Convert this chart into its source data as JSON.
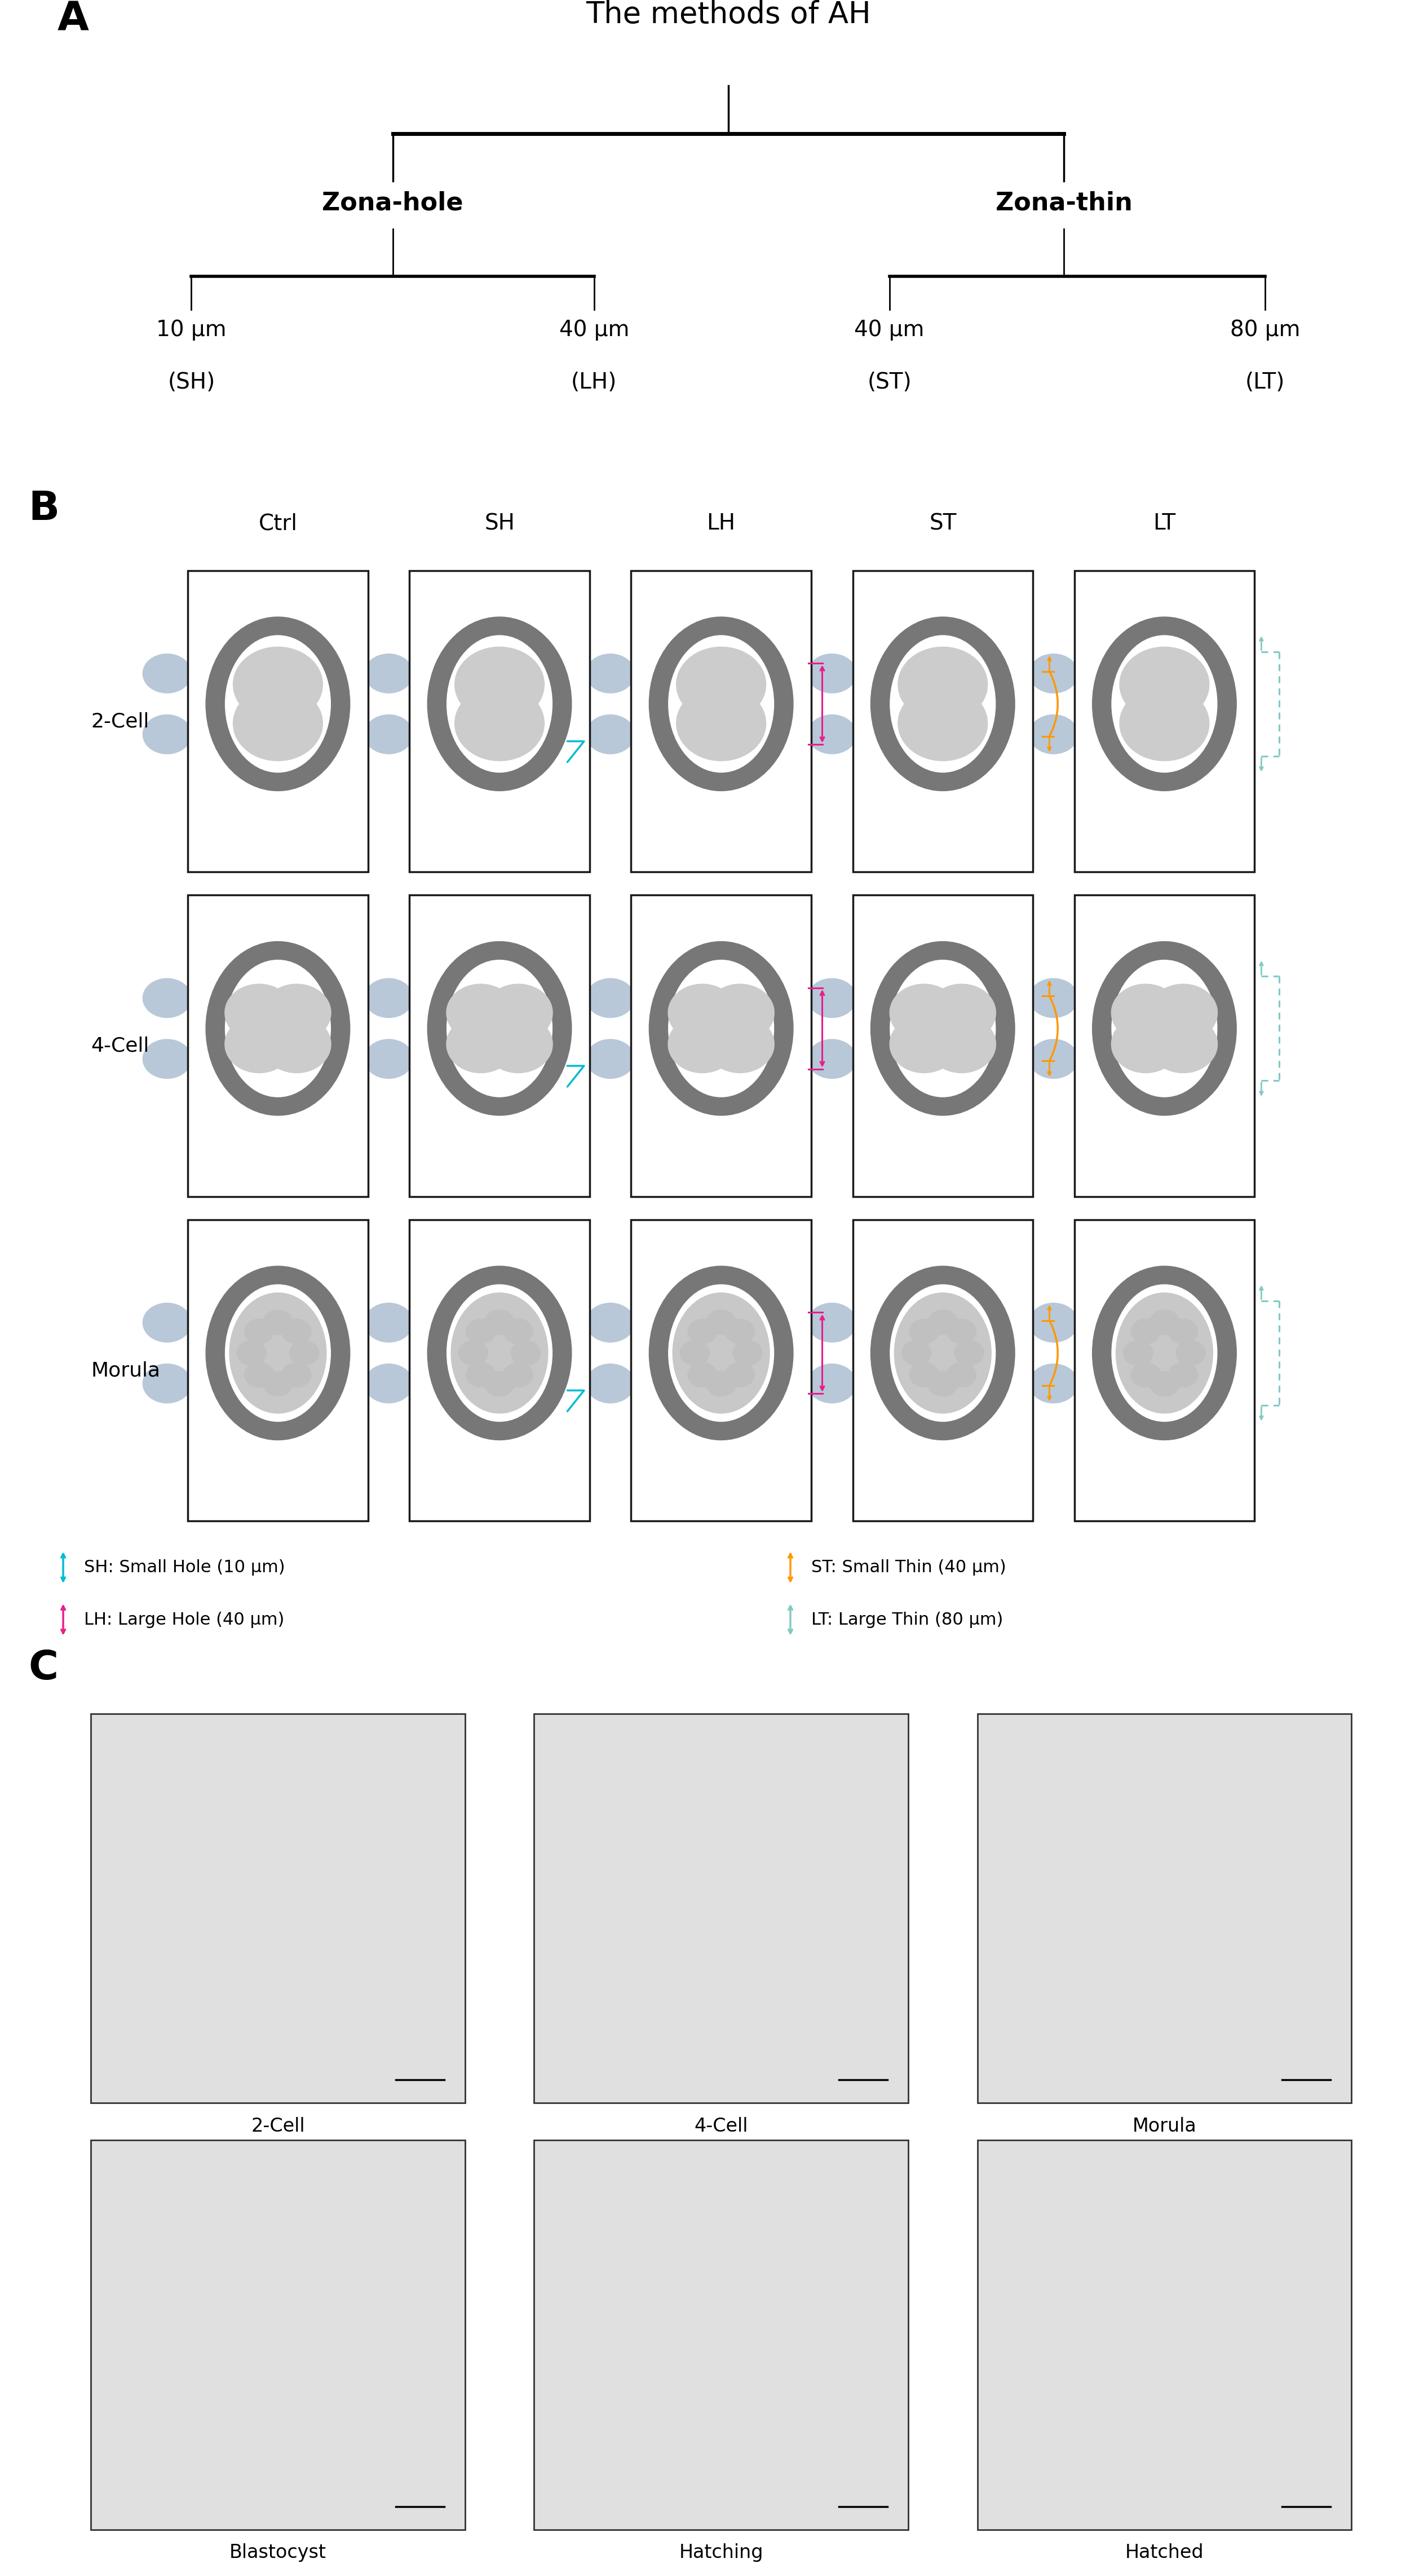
{
  "panel_A_title": "The methods of AH",
  "panel_A_label": "A",
  "panel_B_label": "B",
  "panel_C_label": "C",
  "tree_level1": [
    "Zona-hole",
    "Zona-thin"
  ],
  "tree_level2_zh": [
    "10 μm",
    "(SH)",
    "40 μm",
    "(LH)"
  ],
  "tree_level2_zt": [
    "40 μm",
    "(ST)",
    "80 μm",
    "(LT)"
  ],
  "B_col_labels": [
    "Ctrl",
    "SH",
    "LH",
    "ST",
    "LT"
  ],
  "B_row_labels": [
    "2-Cell",
    "4-Cell",
    "Morula"
  ],
  "C_labels": [
    "2-Cell",
    "4-Cell",
    "Morula",
    "Blastocyst",
    "Hatching",
    "Hatched"
  ],
  "zona_dark": "#777777",
  "zona_light": "#aaaaaa",
  "cell_blue": "#b8c8d8",
  "cell_light": "#cccccc",
  "white": "#ffffff",
  "background": "#ffffff",
  "box_edge": "#1a1a1a",
  "sh_color": "#00bcd4",
  "lh_color": "#e91e8c",
  "st_color": "#ff9800",
  "lt_color": "#80cbc4",
  "leg_sh": "SH: Small Hole (10 μm)",
  "leg_lh": "LH: Large Hole (40 μm)",
  "leg_st": "ST: Small Thin (40 μm)",
  "leg_lt": "LT: Large Thin (80 μm)"
}
